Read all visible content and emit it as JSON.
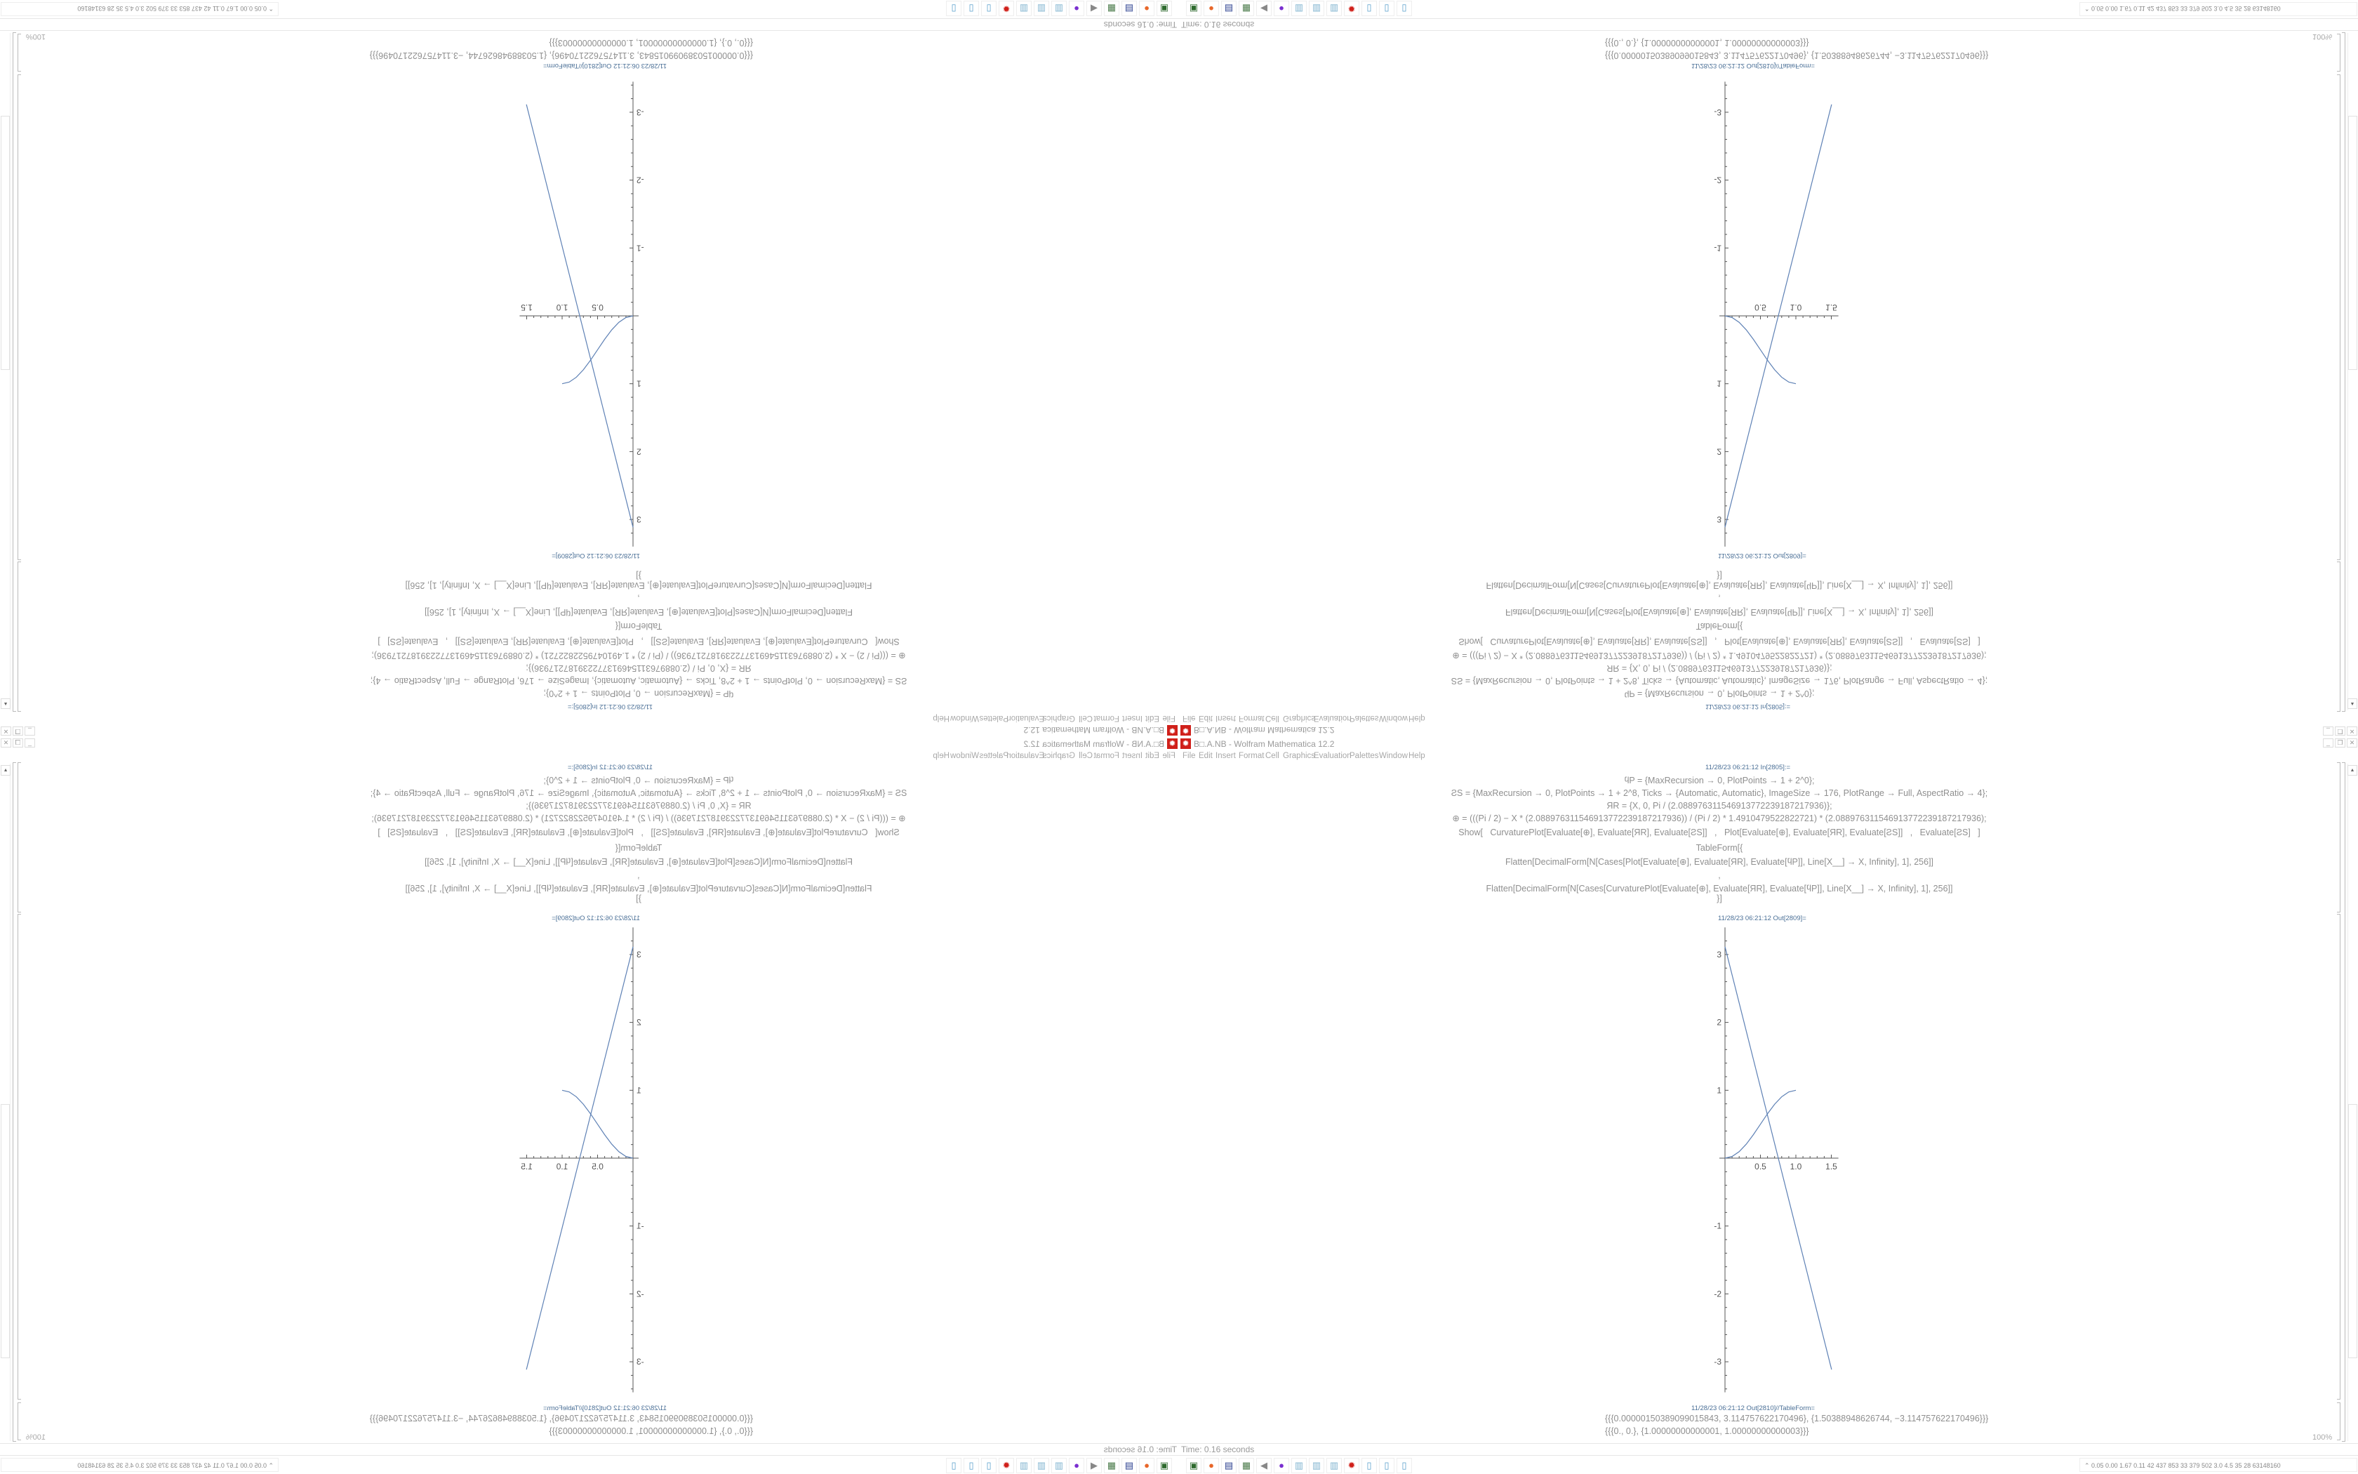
{
  "window": {
    "title": "B□.A.NB - Wolfram Mathematica 12.2",
    "app_icon": "mathematica-icon",
    "controls": [
      "minimize",
      "restore",
      "close"
    ]
  },
  "menu": [
    "File",
    "Edit",
    "Insert",
    "Format",
    "Cell",
    "Graphics",
    "Evaluation",
    "Palettes",
    "Window",
    "Help"
  ],
  "notebook": {
    "input_label": "11/28/23 06:21:12 In[2805]:=",
    "code_lines": [
      "ϥP = {MaxRecursion → 0, PlotPoints → 1 + 2^0};",
      "ƧS = {MaxRecursion → 0, PlotPoints → 1 + 2^8, Ticks → {Automatic, Automatic}, ImageSize → 176, PlotRange → Full, AspectRatio → 4};",
      "ЯR = {X, 0, Pi / (2.088976311546913772239187217936)};",
      "⊕ = (((Pi / 2) − X * (2.088976311546913772239187217936)) / (Pi / 2) * 1.4910479522822721) * (2.088976311546913772239187217936);",
      "Show[   CurvaturePlot[Evaluate[⊕], Evaluate[ЯR], Evaluate[ƧS]]   ,   Plot[Evaluate[⊕], Evaluate[ЯR], Evaluate[ƧS]]   ,   Evaluate[ƧS]   ]",
      "TableForm[{",
      "Flatten[DecimalForm[N[Cases[Plot[Evaluate[⊕], Evaluate[ЯR], Evaluate[ϥP]], Line[X__] → X, Infinity], 1], 256]]",
      ",",
      "Flatten[DecimalForm[N[Cases[CurvaturePlot[Evaluate[⊕], Evaluate[ЯR], Evaluate[ϥP]], Line[X__] → X, Infinity], 1], 256]]",
      "}]"
    ],
    "plot_label": "11/28/23 06:21:12 Out[2809]=",
    "table_label": "11/28/23 06:21:12 Out[2810]//TableForm=",
    "table_rows": [
      "{{{0.00000150389099015843, 3.114757622170496}, {1.50388948626744, −3.114757622170496}}}",
      "{{{0., 0.}, {1.00000000000001, 1.00000000000003}}}"
    ]
  },
  "chart_data": {
    "type": "line",
    "x_ticks": [
      "0.5",
      "1.0",
      "1.5"
    ],
    "y_ticks": [
      "-3",
      "-2",
      "-1",
      "1",
      "2",
      "3"
    ],
    "xlim": [
      0,
      1.6
    ],
    "ylim": [
      -3.45,
      3.4
    ],
    "series": [
      {
        "points": [
          [
            1.5e-06,
            3.1148
          ],
          [
            1.5039,
            -3.1148
          ]
        ]
      },
      {
        "points": [
          [
            0,
            0
          ],
          [
            0.1,
            0.0245
          ],
          [
            0.2,
            0.0955
          ],
          [
            0.3,
            0.2061
          ],
          [
            0.4,
            0.3455
          ],
          [
            0.5,
            0.5
          ],
          [
            0.6,
            0.6545
          ],
          [
            0.7,
            0.7939
          ],
          [
            0.8,
            0.9045
          ],
          [
            0.9,
            0.9755
          ],
          [
            1.0,
            1.0
          ]
        ]
      }
    ],
    "line_color": "#5e81b5"
  },
  "status": {
    "time": "Time: 0.16 seconds",
    "zoom": "100%"
  },
  "taskbar": {
    "icons": [
      {
        "name": "app-launcher-icon",
        "glyph": "▣",
        "color": "#2e6b2e"
      },
      {
        "name": "firefox-icon",
        "glyph": "●",
        "color": "#e8672a"
      },
      {
        "name": "floppy-64-icon",
        "glyph": "▤",
        "color": "#2a3f8f"
      },
      {
        "name": "monitor-icon",
        "glyph": "▦",
        "color": "#4a7a4a"
      },
      {
        "name": "speaker-icon",
        "glyph": "◀",
        "color": "#888888"
      },
      {
        "name": "discord-icon",
        "glyph": "●",
        "color": "#7a2fd0"
      },
      {
        "name": "notepad-icon",
        "glyph": "▥",
        "color": "#7fb3cf"
      },
      {
        "name": "notepad-icon",
        "glyph": "▥",
        "color": "#7fb3cf"
      },
      {
        "name": "notepad-icon",
        "glyph": "▥",
        "color": "#7fb3cf"
      },
      {
        "name": "mathematica-icon",
        "glyph": "✹",
        "color": "#d0201a"
      },
      {
        "name": "calculator-icon",
        "glyph": "▯",
        "color": "#5aa0cc"
      },
      {
        "name": "calculator-icon",
        "glyph": "▯",
        "color": "#5aa0cc"
      },
      {
        "name": "calculator-icon",
        "glyph": "▯",
        "color": "#5aa0cc"
      }
    ],
    "tray_text": "⌃  0.05 0.00 1.67 0.11  42  437  853  33  379  502  3.0  4.5  35  28  63148160"
  }
}
